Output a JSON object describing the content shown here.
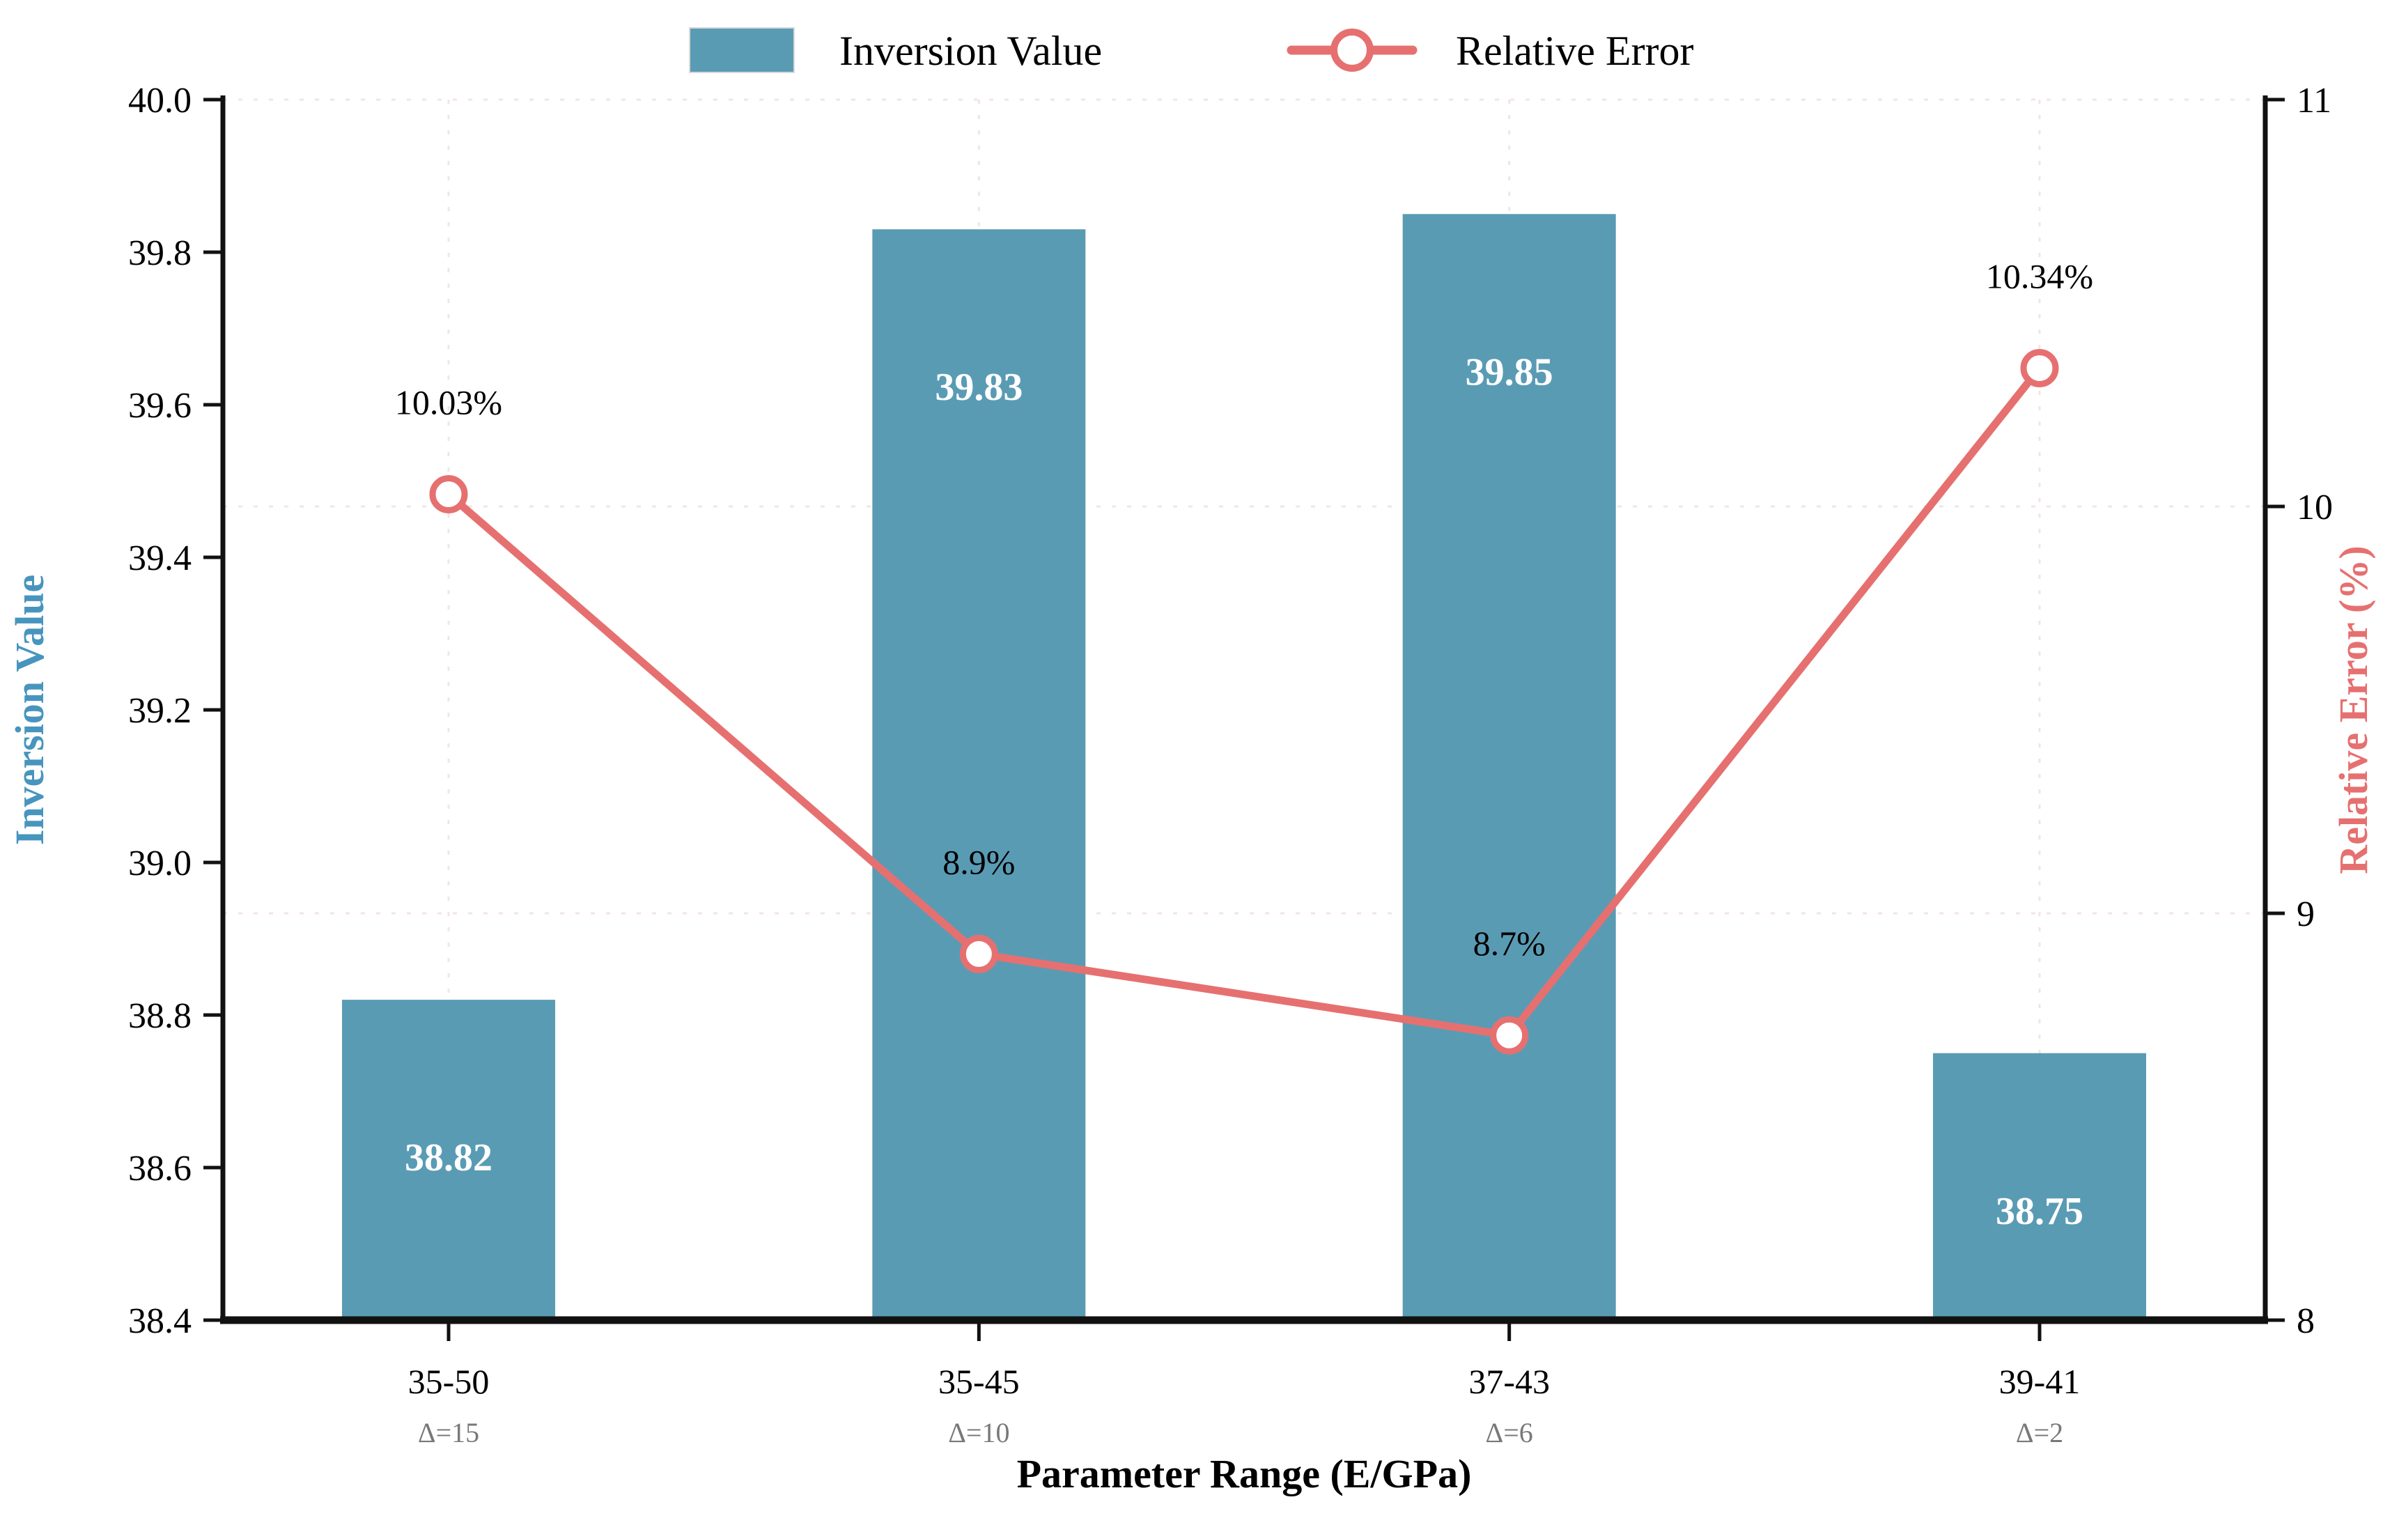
{
  "chart_data": {
    "type": "bar",
    "title": "",
    "categories": [
      "35-50",
      "35-45",
      "37-43",
      "39-41"
    ],
    "category_sublabels": [
      "Δ=15",
      "Δ=10",
      "Δ=6",
      "Δ=2"
    ],
    "series": [
      {
        "name": "Inversion Value",
        "kind": "bar",
        "axis": "left",
        "values": [
          38.82,
          39.83,
          39.85,
          38.75
        ],
        "value_labels": [
          "38.82",
          "39.83",
          "39.85",
          "38.75"
        ],
        "color": "#5A9BB4",
        "label_color": "#ffffff"
      },
      {
        "name": "Relative Error",
        "kind": "line",
        "axis": "right",
        "values": [
          10.03,
          8.9,
          8.7,
          10.34
        ],
        "value_labels": [
          "10.03%",
          "8.9%",
          "8.7%",
          "10.34%"
        ],
        "color": "#E67070",
        "marker": "open-circle",
        "label_color": "#000000"
      }
    ],
    "xlabel": "Parameter Range (E/GPa)",
    "left_axis": {
      "label": "Inversion Value",
      "min": 38.4,
      "max": 40.0,
      "step": 0.2,
      "tick_labels": [
        "40.0",
        "39.8",
        "39.6",
        "39.4",
        "39.2",
        "39.0",
        "38.8",
        "38.6",
        "38.4"
      ],
      "label_color": "#4795BE",
      "tick_color": "#000000"
    },
    "right_axis": {
      "label": "Relative Error (%)",
      "min": 8,
      "max": 11,
      "step": 1,
      "tick_labels": [
        "11",
        "10",
        "9",
        "8"
      ],
      "label_color": "#E67070",
      "tick_color": "#000000"
    },
    "legend": {
      "position": "top-center",
      "items": [
        {
          "label": "Inversion Value",
          "swatch": "bar-swatch",
          "color": "#5A9BB4"
        },
        {
          "label": "Relative Error",
          "swatch": "line-circle-swatch",
          "color": "#E67070"
        }
      ]
    },
    "grid": {
      "style": "faint-dashed",
      "color": "#F2DEDE"
    },
    "sublabel_color": "#787878",
    "axis_line_color": "#111111",
    "background": "#ffffff"
  }
}
